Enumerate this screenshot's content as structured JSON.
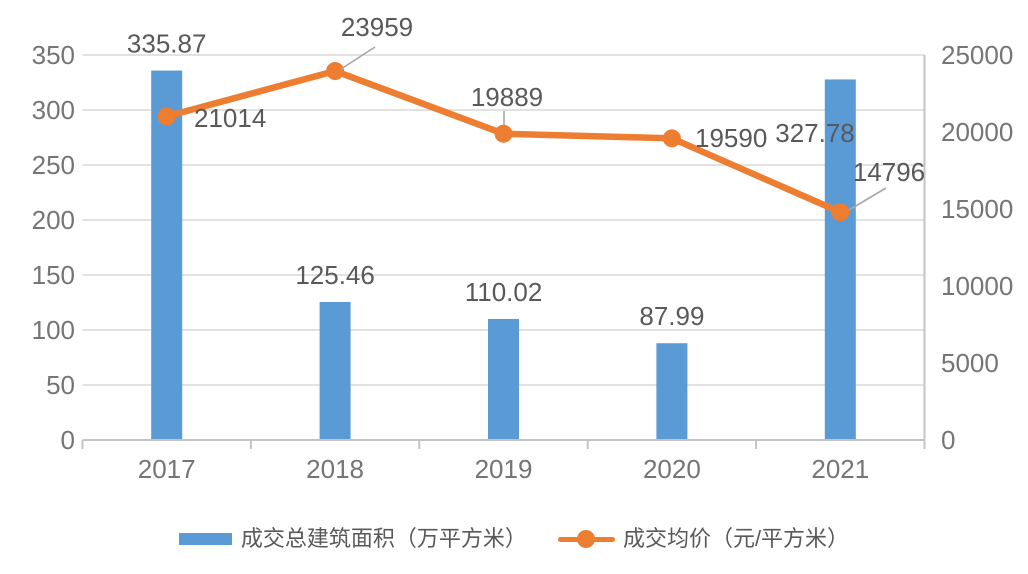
{
  "chart_data": {
    "type": "bar",
    "subtype": "combo-bar-line-dual-axis",
    "title": "",
    "xlabel": "",
    "ylabel": "",
    "categories": [
      "2017",
      "2018",
      "2019",
      "2020",
      "2021"
    ],
    "series": [
      {
        "name": "成交总建筑面积（万平方米）",
        "type": "bar",
        "axis": "left",
        "color": "#5B9BD5",
        "values": [
          335.87,
          125.46,
          110.02,
          87.99,
          327.78
        ],
        "labels": [
          "335.87",
          "125.46",
          "110.02",
          "87.99",
          "327.78"
        ]
      },
      {
        "name": "成交均价（元/平方米）",
        "type": "line",
        "axis": "right",
        "color": "#ED7D31",
        "values": [
          21014,
          23959,
          19889,
          19590,
          14796
        ],
        "labels": [
          "21014",
          "23959",
          "19889",
          "19590",
          "14796"
        ]
      }
    ],
    "left_axis": {
      "min": 0,
      "max": 350,
      "step": 50,
      "ticks": [
        "0",
        "50",
        "100",
        "150",
        "200",
        "250",
        "300",
        "350"
      ]
    },
    "right_axis": {
      "min": 0,
      "max": 25000,
      "step": 5000,
      "ticks": [
        "0",
        "5000",
        "10000",
        "15000",
        "20000",
        "25000"
      ]
    },
    "grid": true,
    "legend_position": "bottom",
    "colors": {
      "gridline": "#D9D9D9",
      "axis_line": "#C3C3C3",
      "axis_label": "#757575",
      "data_label": "#595959",
      "leader_line": "#A6A6A6",
      "background": "#FFFFFF"
    }
  },
  "legend": {
    "items": [
      {
        "label": "成交总建筑面积（万平方米）",
        "color": "#5B9BD5",
        "marker": "bar-swatch"
      },
      {
        "label": "成交均价（元/平方米）",
        "color": "#ED7D31",
        "marker": "line-dot"
      }
    ]
  }
}
